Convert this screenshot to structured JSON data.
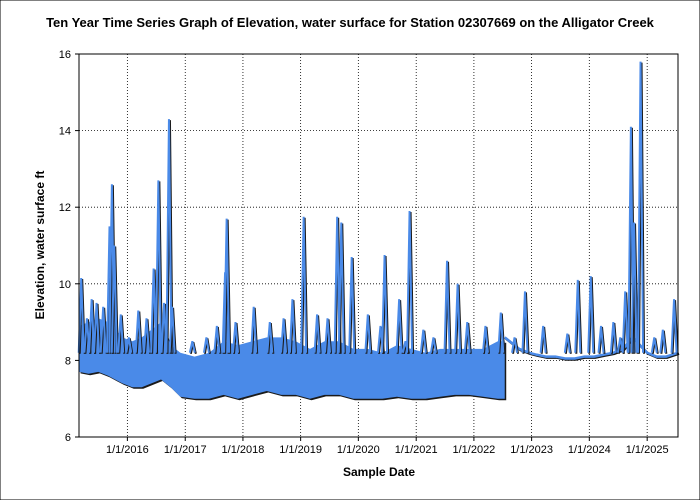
{
  "chart_data": {
    "type": "line",
    "title": "Ten Year Time Series Graph of Elevation, water surface for Station 02307669 on the Alligator Creek",
    "xlabel": "Sample Date",
    "ylabel": "Elevation, water surface ft",
    "x_range": [
      "2015-03-01",
      "2025-07-15"
    ],
    "ylim": [
      6,
      16
    ],
    "y_ticks": [
      6,
      8,
      10,
      12,
      14,
      16
    ],
    "x_ticks": [
      {
        "date": "2016-01-01",
        "label": "1/1/2016"
      },
      {
        "date": "2017-01-01",
        "label": "1/1/2017"
      },
      {
        "date": "2018-01-01",
        "label": "1/1/2018"
      },
      {
        "date": "2019-01-01",
        "label": "1/1/2019"
      },
      {
        "date": "2020-01-01",
        "label": "1/1/2020"
      },
      {
        "date": "2021-01-01",
        "label": "1/1/2021"
      },
      {
        "date": "2022-01-01",
        "label": "1/1/2022"
      },
      {
        "date": "2023-01-01",
        "label": "1/1/2023"
      },
      {
        "date": "2024-01-01",
        "label": "1/1/2024"
      },
      {
        "date": "2025-01-01",
        "label": "1/1/2025"
      }
    ],
    "grid": true,
    "legend": "none",
    "colors": {
      "series": "#4a8ae8",
      "shadow": "#1a1a1a",
      "grid": "#000000",
      "frame": "#000000"
    },
    "series": [
      {
        "band_low": [
          [
            "2015-03-01",
            7.7
          ],
          [
            "2015-05-01",
            7.65
          ],
          [
            "2015-07-01",
            7.7
          ],
          [
            "2015-09-01",
            7.6
          ],
          [
            "2015-10-15",
            7.5
          ],
          [
            "2015-12-01",
            7.4
          ],
          [
            "2016-02-01",
            7.3
          ],
          [
            "2016-04-01",
            7.3
          ],
          [
            "2016-06-01",
            7.4
          ],
          [
            "2016-08-01",
            7.5
          ],
          [
            "2016-10-01",
            7.3
          ],
          [
            "2016-12-01",
            7.05
          ],
          [
            "2017-03-01",
            7.0
          ],
          [
            "2017-06-01",
            7.0
          ],
          [
            "2017-09-01",
            7.1
          ],
          [
            "2017-12-01",
            7.0
          ],
          [
            "2018-03-01",
            7.1
          ],
          [
            "2018-06-01",
            7.2
          ],
          [
            "2018-09-01",
            7.1
          ],
          [
            "2018-12-01",
            7.1
          ],
          [
            "2019-03-01",
            7.0
          ],
          [
            "2019-06-01",
            7.1
          ],
          [
            "2019-09-01",
            7.1
          ],
          [
            "2019-12-01",
            7.0
          ],
          [
            "2020-03-01",
            7.0
          ],
          [
            "2020-06-01",
            7.0
          ],
          [
            "2020-09-01",
            7.05
          ],
          [
            "2020-12-01",
            7.0
          ],
          [
            "2021-03-01",
            7.0
          ],
          [
            "2021-06-01",
            7.05
          ],
          [
            "2021-09-01",
            7.1
          ],
          [
            "2021-12-01",
            7.1
          ],
          [
            "2022-03-01",
            7.05
          ],
          [
            "2022-06-01",
            7.0
          ],
          [
            "2022-07-15",
            7.0
          ]
        ],
        "band_high": [
          [
            "2015-03-01",
            8.9
          ],
          [
            "2015-05-01",
            9.0
          ],
          [
            "2015-07-01",
            9.1
          ],
          [
            "2015-09-01",
            9.0
          ],
          [
            "2015-10-15",
            8.8
          ],
          [
            "2015-12-01",
            8.6
          ],
          [
            "2016-02-01",
            8.5
          ],
          [
            "2016-04-01",
            8.6
          ],
          [
            "2016-06-01",
            8.8
          ],
          [
            "2016-08-01",
            9.0
          ],
          [
            "2016-10-01",
            8.4
          ],
          [
            "2016-12-01",
            8.2
          ],
          [
            "2017-03-01",
            8.1
          ],
          [
            "2017-06-01",
            8.2
          ],
          [
            "2017-09-01",
            8.5
          ],
          [
            "2017-12-01",
            8.4
          ],
          [
            "2018-03-01",
            8.5
          ],
          [
            "2018-06-01",
            8.6
          ],
          [
            "2018-09-01",
            8.6
          ],
          [
            "2018-12-01",
            8.5
          ],
          [
            "2019-03-01",
            8.3
          ],
          [
            "2019-06-01",
            8.5
          ],
          [
            "2019-09-01",
            8.5
          ],
          [
            "2019-12-01",
            8.3
          ],
          [
            "2020-03-01",
            8.3
          ],
          [
            "2020-06-01",
            8.2
          ],
          [
            "2020-09-01",
            8.4
          ],
          [
            "2020-12-01",
            8.3
          ],
          [
            "2021-03-01",
            8.2
          ],
          [
            "2021-06-01",
            8.3
          ],
          [
            "2021-09-01",
            8.3
          ],
          [
            "2021-12-01",
            8.3
          ],
          [
            "2022-03-01",
            8.3
          ],
          [
            "2022-06-01",
            8.5
          ],
          [
            "2022-07-15",
            8.5
          ]
        ],
        "line_after": [
          [
            "2022-07-15",
            8.6
          ],
          [
            "2022-08-15",
            8.5
          ],
          [
            "2022-09-15",
            8.4
          ],
          [
            "2022-10-15",
            8.3
          ],
          [
            "2022-11-15",
            8.25
          ],
          [
            "2022-12-15",
            8.2
          ],
          [
            "2023-02-01",
            8.15
          ],
          [
            "2023-04-01",
            8.1
          ],
          [
            "2023-06-01",
            8.1
          ],
          [
            "2023-08-01",
            8.05
          ],
          [
            "2023-10-01",
            8.05
          ],
          [
            "2023-12-01",
            8.1
          ],
          [
            "2024-02-01",
            8.1
          ],
          [
            "2024-04-01",
            8.15
          ],
          [
            "2024-06-01",
            8.2
          ],
          [
            "2024-08-01",
            8.3
          ],
          [
            "2024-10-01",
            8.6
          ],
          [
            "2024-11-15",
            8.4
          ],
          [
            "2025-01-01",
            8.2
          ],
          [
            "2025-03-01",
            8.1
          ],
          [
            "2025-05-01",
            8.1
          ],
          [
            "2025-07-15",
            8.2
          ]
        ],
        "spikes": [
          [
            "2015-03-15",
            10.15
          ],
          [
            "2015-04-20",
            9.1
          ],
          [
            "2015-05-20",
            9.6
          ],
          [
            "2015-06-20",
            9.5
          ],
          [
            "2015-08-01",
            9.4
          ],
          [
            "2015-09-10",
            11.5
          ],
          [
            "2015-09-25",
            12.6
          ],
          [
            "2015-10-10",
            11.0
          ],
          [
            "2015-11-20",
            9.2
          ],
          [
            "2016-01-10",
            8.6
          ],
          [
            "2016-03-10",
            9.3
          ],
          [
            "2016-05-01",
            9.1
          ],
          [
            "2016-06-15",
            10.4
          ],
          [
            "2016-07-15",
            12.7
          ],
          [
            "2016-08-20",
            9.5
          ],
          [
            "2016-09-20",
            14.3
          ],
          [
            "2016-10-10",
            9.4
          ],
          [
            "2017-02-15",
            8.5
          ],
          [
            "2017-05-15",
            8.6
          ],
          [
            "2017-07-20",
            8.9
          ],
          [
            "2017-09-10",
            10.3
          ],
          [
            "2017-09-20",
            11.7
          ],
          [
            "2017-11-15",
            9.0
          ],
          [
            "2018-03-10",
            9.4
          ],
          [
            "2018-06-20",
            9.0
          ],
          [
            "2018-09-15",
            9.1
          ],
          [
            "2018-11-10",
            9.6
          ],
          [
            "2019-01-20",
            11.75
          ],
          [
            "2019-04-15",
            9.2
          ],
          [
            "2019-06-20",
            9.1
          ],
          [
            "2019-08-20",
            11.75
          ],
          [
            "2019-09-15",
            11.6
          ],
          [
            "2019-11-20",
            10.7
          ],
          [
            "2020-03-01",
            9.2
          ],
          [
            "2020-05-20",
            8.9
          ],
          [
            "2020-06-15",
            10.75
          ],
          [
            "2020-09-15",
            9.6
          ],
          [
            "2020-10-25",
            8.5
          ],
          [
            "2020-11-20",
            11.9
          ],
          [
            "2021-02-15",
            8.8
          ],
          [
            "2021-04-20",
            8.6
          ],
          [
            "2021-07-15",
            10.6
          ],
          [
            "2021-09-20",
            10.0
          ],
          [
            "2021-11-20",
            9.0
          ],
          [
            "2022-03-15",
            8.9
          ],
          [
            "2022-06-20",
            9.25
          ],
          [
            "2022-09-15",
            8.6
          ],
          [
            "2022-11-20",
            9.8
          ],
          [
            "2023-03-15",
            8.9
          ],
          [
            "2023-08-15",
            8.7
          ],
          [
            "2023-10-20",
            10.1
          ],
          [
            "2024-01-10",
            10.2
          ],
          [
            "2024-03-15",
            8.9
          ],
          [
            "2024-06-01",
            9.0
          ],
          [
            "2024-07-15",
            8.6
          ],
          [
            "2024-08-15",
            9.8
          ],
          [
            "2024-09-20",
            14.1
          ],
          [
            "2024-10-10",
            11.6
          ],
          [
            "2024-11-20",
            15.8
          ],
          [
            "2025-02-15",
            8.6
          ],
          [
            "2025-04-10",
            8.8
          ],
          [
            "2025-06-20",
            9.6
          ]
        ]
      }
    ]
  }
}
